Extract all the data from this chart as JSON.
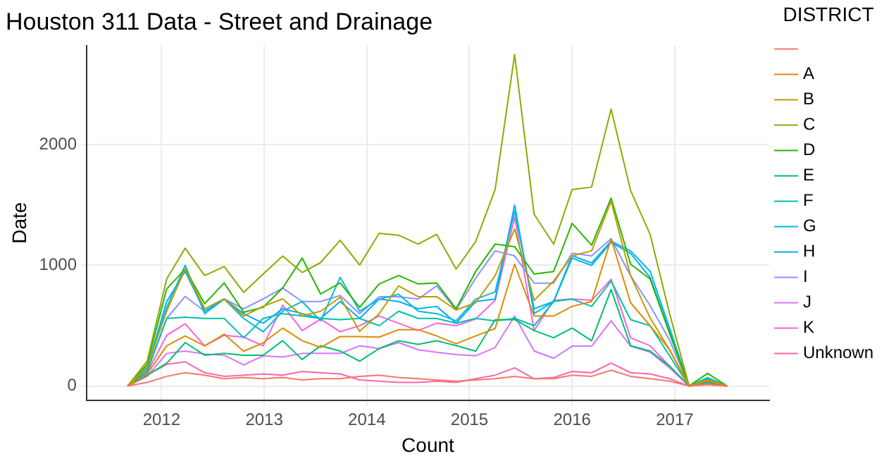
{
  "chart_data": {
    "type": "line",
    "title": "Houston 311 Data - Street and Drainage",
    "xlabel": "Count",
    "ylabel": "Date",
    "legend_title": "DISTRICT",
    "legend": "right",
    "grid": true,
    "marker": "none",
    "line_style": "solid",
    "x": [
      2011.67,
      2011.86,
      2012.05,
      2012.23,
      2012.42,
      2012.61,
      2012.8,
      2012.99,
      2013.18,
      2013.37,
      2013.55,
      2013.74,
      2013.93,
      2014.12,
      2014.31,
      2014.5,
      2014.68,
      2014.87,
      2015.06,
      2015.25,
      2015.44,
      2015.63,
      2015.82,
      2016.0,
      2016.19,
      2016.38,
      2016.57,
      2016.76,
      2016.95,
      2017.14,
      2017.32,
      2017.51
    ],
    "xlim": [
      2011.27,
      2017.92
    ],
    "xticks": [
      2012,
      2013,
      2014,
      2015,
      2016,
      2017
    ],
    "ylim": [
      -117,
      2821
    ],
    "yticks": [
      0,
      1000,
      2000
    ],
    "series": [
      {
        "name": null,
        "color": "#f8766d",
        "values": [
          0,
          30,
          80,
          110,
          90,
          60,
          70,
          60,
          70,
          50,
          60,
          60,
          80,
          90,
          70,
          60,
          50,
          40,
          50,
          60,
          80,
          60,
          60,
          90,
          80,
          130,
          80,
          60,
          40,
          0,
          10,
          0
        ]
      },
      {
        "name": "A",
        "color": "#e18a00",
        "values": [
          0,
          100,
          333,
          415,
          333,
          430,
          288,
          358,
          480,
          375,
          320,
          410,
          410,
          405,
          467,
          467,
          415,
          350,
          415,
          477,
          1010,
          580,
          580,
          660,
          700,
          1220,
          690,
          500,
          300,
          0,
          40,
          0
        ]
      },
      {
        "name": "B",
        "color": "#be9c00",
        "values": [
          0,
          160,
          620,
          970,
          640,
          722,
          580,
          660,
          722,
          580,
          620,
          735,
          453,
          600,
          830,
          740,
          740,
          630,
          690,
          914,
          1300,
          710,
          870,
          1078,
          1120,
          1530,
          914,
          564,
          300,
          0,
          50,
          0
        ]
      },
      {
        "name": "C",
        "color": "#8cab00",
        "values": [
          0,
          207,
          887,
          1142,
          916,
          990,
          776,
          928,
          1077,
          941,
          1023,
          1208,
          1003,
          1266,
          1250,
          1176,
          1257,
          969,
          1196,
          1628,
          2748,
          1423,
          1176,
          1628,
          1649,
          2295,
          1620,
          1257,
          599,
          0,
          10,
          0
        ]
      },
      {
        "name": "D",
        "color": "#24b700",
        "values": [
          0,
          180,
          805,
          969,
          682,
          854,
          611,
          652,
          813,
          1060,
          763,
          854,
          652,
          846,
          916,
          846,
          854,
          640,
          949,
          1176,
          1155,
          928,
          949,
          1348,
          1167,
          1558,
          1010,
          887,
          435,
          0,
          105,
          0
        ]
      },
      {
        "name": "E",
        "color": "#00be70",
        "values": [
          0,
          90,
          188,
          360,
          255,
          270,
          255,
          255,
          375,
          220,
          333,
          290,
          206,
          310,
          375,
          345,
          375,
          335,
          288,
          550,
          550,
          460,
          400,
          480,
          375,
          800,
          333,
          290,
          165,
          0,
          30,
          0
        ]
      },
      {
        "name": "F",
        "color": "#00c1ab",
        "values": [
          0,
          120,
          560,
          570,
          560,
          560,
          400,
          560,
          600,
          580,
          560,
          550,
          560,
          500,
          620,
          560,
          560,
          520,
          560,
          540,
          560,
          500,
          700,
          720,
          660,
          870,
          550,
          500,
          250,
          0,
          40,
          0
        ]
      },
      {
        "name": "G",
        "color": "#00bbda",
        "values": [
          0,
          150,
          650,
          1000,
          600,
          720,
          560,
          450,
          620,
          700,
          540,
          900,
          620,
          720,
          760,
          620,
          600,
          540,
          720,
          780,
          1450,
          640,
          700,
          1080,
          1020,
          1200,
          1120,
          950,
          480,
          0,
          70,
          0
        ]
      },
      {
        "name": "H",
        "color": "#00acfc",
        "values": [
          0,
          150,
          700,
          950,
          620,
          720,
          600,
          520,
          640,
          600,
          560,
          700,
          560,
          720,
          700,
          640,
          660,
          520,
          700,
          720,
          1500,
          600,
          700,
          1060,
          1000,
          1190,
          1100,
          900,
          450,
          0,
          60,
          0
        ]
      },
      {
        "name": "I",
        "color": "#8b93ff",
        "values": [
          0,
          130,
          560,
          743,
          620,
          722,
          640,
          722,
          812,
          700,
          700,
          750,
          600,
          740,
          740,
          720,
          830,
          630,
          893,
          1120,
          1078,
          852,
          852,
          1100,
          1078,
          1220,
          914,
          667,
          380,
          0,
          50,
          0
        ]
      },
      {
        "name": "J",
        "color": "#d575fe",
        "values": [
          0,
          80,
          270,
          290,
          265,
          255,
          175,
          250,
          240,
          270,
          270,
          270,
          333,
          310,
          360,
          300,
          280,
          260,
          250,
          320,
          580,
          290,
          230,
          330,
          330,
          540,
          330,
          280,
          150,
          0,
          20,
          0
        ]
      },
      {
        "name": "K",
        "color": "#f962dd",
        "values": [
          0,
          110,
          420,
          515,
          333,
          420,
          405,
          333,
          670,
          460,
          555,
          450,
          500,
          580,
          520,
          460,
          520,
          500,
          555,
          710,
          1400,
          460,
          710,
          720,
          710,
          885,
          400,
          333,
          165,
          0,
          30,
          0
        ]
      },
      {
        "name": "Unknown",
        "color": "#ff65ac",
        "values": [
          0,
          90,
          180,
          200,
          110,
          80,
          90,
          100,
          90,
          120,
          110,
          100,
          50,
          40,
          30,
          30,
          40,
          30,
          60,
          90,
          150,
          60,
          70,
          120,
          110,
          190,
          110,
          100,
          60,
          0,
          20,
          0
        ]
      }
    ]
  }
}
